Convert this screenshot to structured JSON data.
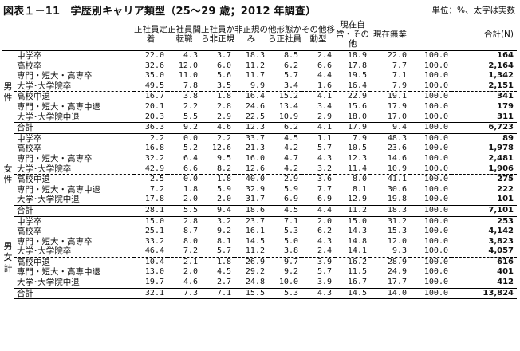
{
  "title": "図表１－11　学歴別キャリア類型（25～29 歳；2012 年調査）",
  "unit_note": "単位：%、太字は実数",
  "columns": [
    "正社員定着",
    "正社員間転職",
    "正社員から非正規",
    "非正規のみ",
    "他形態から正社員",
    "その他移動型",
    "現在自営・その他",
    "現在無業",
    "合計",
    "(N)"
  ],
  "groups": [
    {
      "label": "男性",
      "rows": [
        {
          "label": "中学卒",
          "values": [
            "22.0",
            "4.3",
            "3.7",
            "18.3",
            "8.5",
            "2.4",
            "18.9",
            "22.0",
            "100.0"
          ],
          "n": "164"
        },
        {
          "label": "高校卒",
          "values": [
            "32.6",
            "12.0",
            "6.0",
            "11.2",
            "6.2",
            "6.6",
            "17.8",
            "7.7",
            "100.0"
          ],
          "n": "2,164"
        },
        {
          "label": "専門・短大・高専卒",
          "values": [
            "35.0",
            "11.0",
            "5.6",
            "11.7",
            "5.7",
            "4.4",
            "19.5",
            "7.1",
            "100.0"
          ],
          "n": "1,342"
        },
        {
          "label": "大学･大学院卒",
          "values": [
            "49.5",
            "7.8",
            "3.5",
            "9.9",
            "3.4",
            "1.6",
            "16.4",
            "7.9",
            "100.0"
          ],
          "n": "2,151"
        },
        {
          "label": "高校中退",
          "values": [
            "16.7",
            "3.8",
            "1.8",
            "16.4",
            "15.2",
            "4.1",
            "22.9",
            "19.1",
            "100.0"
          ],
          "n": "341"
        },
        {
          "label": "専門・短大・高専中退",
          "values": [
            "20.1",
            "2.2",
            "2.8",
            "24.6",
            "13.4",
            "3.4",
            "15.6",
            "17.9",
            "100.0"
          ],
          "n": "179"
        },
        {
          "label": "大学･大学院中退",
          "values": [
            "20.3",
            "5.5",
            "2.9",
            "22.5",
            "10.9",
            "2.9",
            "18.0",
            "17.0",
            "100.0"
          ],
          "n": "311"
        },
        {
          "label": "合計",
          "values": [
            "36.3",
            "9.2",
            "4.6",
            "12.3",
            "6.2",
            "4.1",
            "17.9",
            "9.4",
            "100.0"
          ],
          "n": "6,723"
        }
      ]
    },
    {
      "label": "女性",
      "rows": [
        {
          "label": "中学卒",
          "values": [
            "2.2",
            "0.0",
            "2.2",
            "33.7",
            "4.5",
            "1.1",
            "7.9",
            "48.3",
            "100.0"
          ],
          "n": "89"
        },
        {
          "label": "高校卒",
          "values": [
            "16.8",
            "5.2",
            "12.6",
            "21.3",
            "4.2",
            "5.7",
            "10.5",
            "23.6",
            "100.0"
          ],
          "n": "1,978"
        },
        {
          "label": "専門・短大・高専卒",
          "values": [
            "32.2",
            "6.4",
            "9.5",
            "16.0",
            "4.7",
            "4.3",
            "12.3",
            "14.6",
            "100.0"
          ],
          "n": "2,481"
        },
        {
          "label": "大学･大学院卒",
          "values": [
            "42.9",
            "6.6",
            "8.2",
            "12.6",
            "4.2",
            "3.2",
            "11.4",
            "10.9",
            "100.0"
          ],
          "n": "1,906"
        },
        {
          "label": "高校中退",
          "values": [
            "2.5",
            "0.0",
            "1.8",
            "40.0",
            "2.9",
            "3.6",
            "8.0",
            "41.1",
            "100.0"
          ],
          "n": "275"
        },
        {
          "label": "専門・短大・高専中退",
          "values": [
            "7.2",
            "1.8",
            "5.9",
            "32.9",
            "5.9",
            "7.7",
            "8.1",
            "30.6",
            "100.0"
          ],
          "n": "222"
        },
        {
          "label": "大学･大学院中退",
          "values": [
            "17.8",
            "2.0",
            "2.0",
            "31.7",
            "6.9",
            "6.9",
            "12.9",
            "19.8",
            "100.0"
          ],
          "n": "101"
        },
        {
          "label": "合計",
          "values": [
            "28.1",
            "5.5",
            "9.4",
            "18.6",
            "4.5",
            "4.4",
            "11.2",
            "18.3",
            "100.0"
          ],
          "n": "7,101"
        }
      ]
    },
    {
      "label": "男女計",
      "rows": [
        {
          "label": "中学卒",
          "values": [
            "15.0",
            "2.8",
            "3.2",
            "23.7",
            "7.1",
            "2.0",
            "15.0",
            "31.2",
            "100.0"
          ],
          "n": "253"
        },
        {
          "label": "高校卒",
          "values": [
            "25.1",
            "8.7",
            "9.2",
            "16.1",
            "5.3",
            "6.2",
            "14.3",
            "15.3",
            "100.0"
          ],
          "n": "4,142"
        },
        {
          "label": "専門・短大・高専卒",
          "values": [
            "33.2",
            "8.0",
            "8.1",
            "14.5",
            "5.0",
            "4.3",
            "14.8",
            "12.0",
            "100.0"
          ],
          "n": "3,823"
        },
        {
          "label": "大学･大学院卒",
          "values": [
            "46.4",
            "7.2",
            "5.7",
            "11.2",
            "3.8",
            "2.4",
            "14.1",
            "9.3",
            "100.0"
          ],
          "n": "4,057"
        },
        {
          "label": "高校中退",
          "values": [
            "10.4",
            "2.1",
            "1.8",
            "26.9",
            "9.7",
            "3.9",
            "16.2",
            "28.9",
            "100.0"
          ],
          "n": "616"
        },
        {
          "label": "専門・短大・高専中退",
          "values": [
            "13.0",
            "2.0",
            "4.5",
            "29.2",
            "9.2",
            "5.7",
            "11.5",
            "24.9",
            "100.0"
          ],
          "n": "401"
        },
        {
          "label": "大学･大学院中退",
          "values": [
            "19.7",
            "4.6",
            "2.7",
            "24.8",
            "10.0",
            "3.9",
            "16.7",
            "17.7",
            "100.0"
          ],
          "n": "412"
        },
        {
          "label": "合計",
          "values": [
            "32.1",
            "7.3",
            "7.1",
            "15.5",
            "5.3",
            "4.3",
            "14.5",
            "14.0",
            "100.0"
          ],
          "n": "13,824"
        }
      ]
    }
  ]
}
